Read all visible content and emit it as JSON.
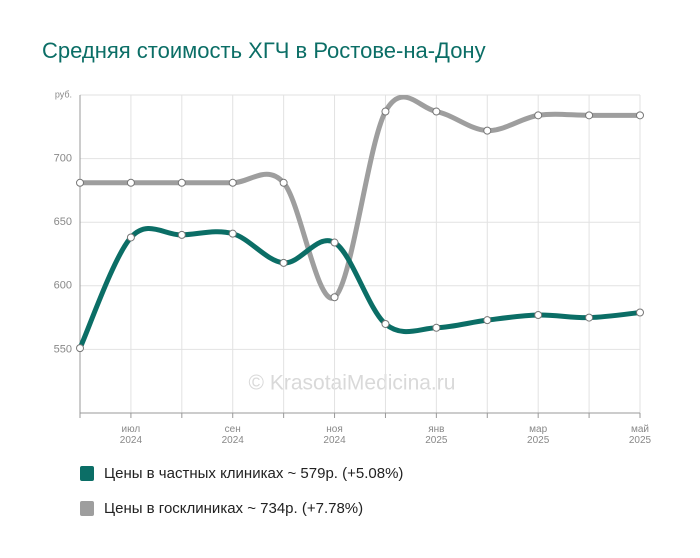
{
  "chart_data": {
    "type": "line",
    "title": "Средняя стоимость ХГЧ в Ростове-на-Дону",
    "watermark": "© KrasotaiMedicina.ru",
    "categories": [
      null,
      "июл 2024",
      null,
      "сен 2024",
      null,
      "ноя 2024",
      null,
      "янв 2025",
      null,
      "мар 2025",
      null,
      "май 2025"
    ],
    "series": [
      {
        "name": "Цены в частных клиниках ~ 579р. (+5.08%)",
        "color": "#0b6e66",
        "values": [
          551,
          638,
          640,
          641,
          618,
          634,
          570,
          567,
          573,
          577,
          575,
          579
        ]
      },
      {
        "name": "Цены в госклиниках ~ 734р. (+7.78%)",
        "color": "#9e9e9e",
        "values": [
          681,
          681,
          681,
          681,
          681,
          591,
          737,
          737,
          722,
          734,
          734,
          734
        ]
      }
    ],
    "ylim": [
      500,
      750
    ],
    "yticks": [
      550,
      600,
      650,
      700,
      {
        "value": 750,
        "label": "руб."
      }
    ],
    "grid": true
  }
}
